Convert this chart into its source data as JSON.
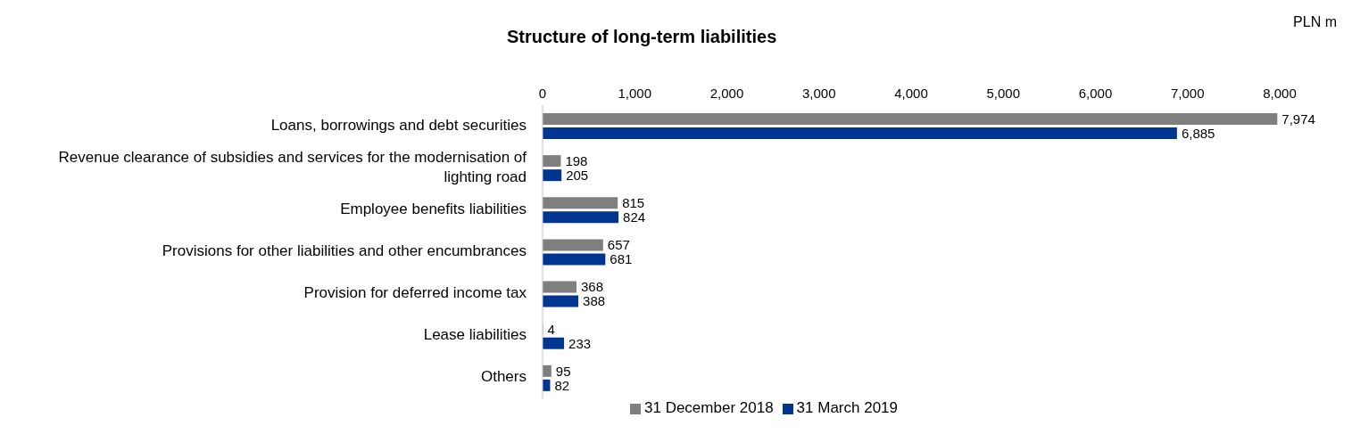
{
  "chart_data": {
    "type": "bar",
    "orientation": "horizontal",
    "title": "Structure of long-term liabilities",
    "annotations": [
      "PLN m"
    ],
    "categories": [
      "Loans, borrowings and debt securities",
      "Revenue clearance of subsidies and services for the modernisation of lighting road",
      "Employee benefits liabilities",
      "Provisions for other liabilities and other encumbrances",
      "Provision for deferred income tax",
      "Lease liabilities",
      "Others"
    ],
    "series": [
      {
        "name": "31 December 2018",
        "color": "#7f7f7f",
        "values": [
          7974,
          198,
          815,
          657,
          368,
          4,
          95
        ],
        "value_labels": [
          "7,974",
          "198",
          "815",
          "657",
          "368",
          "4",
          "95"
        ]
      },
      {
        "name": "31 March 2019",
        "color": "#003591",
        "values": [
          6885,
          205,
          824,
          681,
          388,
          233,
          82
        ],
        "value_labels": [
          "6,885",
          "205",
          "824",
          "681",
          "388",
          "233",
          "82"
        ]
      }
    ],
    "xlim": [
      0,
      8000
    ],
    "xticks": [
      {
        "value": 0,
        "label": "0"
      },
      {
        "value": 1000,
        "label": "1,000"
      },
      {
        "value": 2000,
        "label": "2,000"
      },
      {
        "value": 3000,
        "label": "3,000"
      },
      {
        "value": 4000,
        "label": "4,000"
      },
      {
        "value": 5000,
        "label": "5,000"
      },
      {
        "value": 6000,
        "label": "6,000"
      },
      {
        "value": 7000,
        "label": "7,000"
      },
      {
        "value": 8000,
        "label": "8,000"
      }
    ],
    "grid": false,
    "legend": "bottom"
  }
}
